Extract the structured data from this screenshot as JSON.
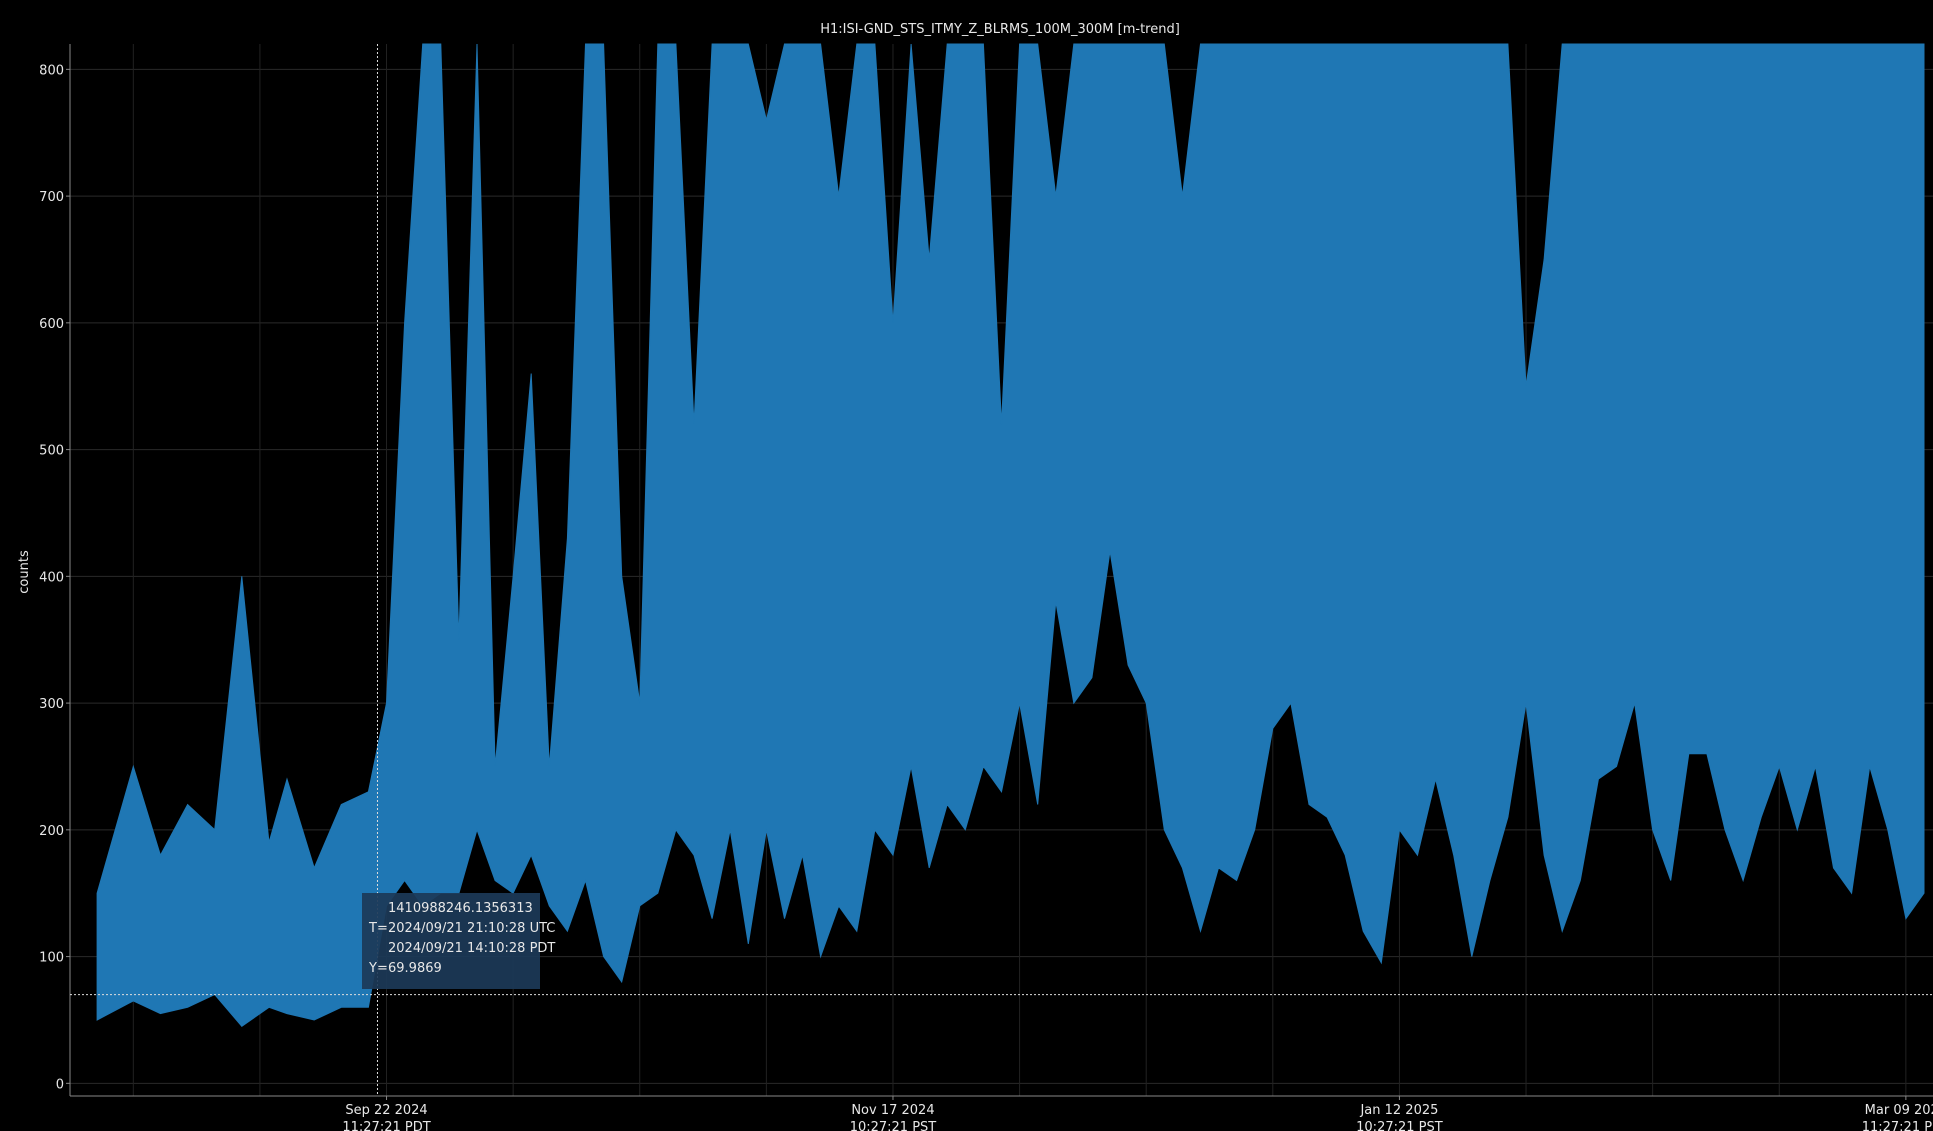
{
  "chart_data": {
    "type": "area",
    "title": "H1:ISI-GND_STS_ITMY_Z_BLRMS_100M_300M [m-trend]",
    "ylabel": "counts",
    "xlabel": "",
    "ylim": [
      -10,
      820
    ],
    "yticks": [
      0,
      100,
      200,
      300,
      400,
      500,
      600,
      700,
      800
    ],
    "xticks": [
      {
        "date": "Sep 22 2024",
        "time": "11:27:21 PDT"
      },
      {
        "date": "Nov 17 2024",
        "time": "10:27:21 PST"
      },
      {
        "date": "Jan 12 2025",
        "time": "10:27:21 PST"
      },
      {
        "date": "Mar 09 2025",
        "time": "11:27:21 PDT"
      }
    ],
    "grid": true,
    "series": [
      {
        "color": "#1f77b4",
        "envelope_x_days_from_sep22": [
          -32,
          -28,
          -25,
          -22,
          -19,
          -16,
          -13,
          -11,
          -8,
          -5,
          -2,
          0,
          2,
          4,
          6,
          8,
          10,
          12,
          14,
          16,
          18,
          20,
          22,
          24,
          26,
          28,
          30,
          32,
          34,
          36,
          38,
          40,
          42,
          44,
          46,
          48,
          50,
          52,
          54,
          56,
          58,
          60,
          62,
          64,
          66,
          68,
          70,
          72,
          74,
          76,
          78,
          80,
          82,
          84,
          86,
          88,
          90,
          92,
          94,
          96,
          98,
          100,
          102,
          104,
          106,
          108,
          110,
          112,
          114,
          116,
          118,
          120,
          122,
          124,
          126,
          128,
          130,
          132,
          134,
          136,
          138,
          140,
          142,
          144,
          146,
          148,
          150,
          152,
          154,
          156,
          158,
          160,
          162,
          164,
          166,
          168,
          170
        ],
        "upper": [
          150,
          250,
          180,
          220,
          200,
          400,
          190,
          240,
          170,
          220,
          230,
          300,
          600,
          820,
          820,
          350,
          820,
          250,
          400,
          560,
          250,
          430,
          820,
          820,
          400,
          300,
          820,
          820,
          520,
          820,
          820,
          820,
          760,
          820,
          820,
          820,
          700,
          820,
          820,
          600,
          820,
          650,
          820,
          820,
          820,
          520,
          820,
          820,
          700,
          820,
          820,
          820,
          820,
          820,
          820,
          700,
          820,
          820,
          820,
          820,
          820,
          820,
          820,
          820,
          820,
          820,
          820,
          820,
          820,
          820,
          820,
          820,
          820,
          820,
          550,
          650,
          820,
          820,
          820,
          820,
          820,
          820,
          820,
          820,
          820,
          820,
          820,
          820,
          820,
          820,
          820,
          820,
          820,
          820,
          820,
          820,
          820
        ],
        "lower": [
          50,
          65,
          55,
          60,
          70,
          45,
          60,
          55,
          50,
          60,
          60,
          140,
          160,
          140,
          150,
          150,
          200,
          160,
          150,
          180,
          140,
          120,
          160,
          100,
          80,
          140,
          150,
          200,
          180,
          130,
          200,
          110,
          200,
          130,
          180,
          100,
          140,
          120,
          200,
          180,
          250,
          170,
          220,
          200,
          250,
          230,
          300,
          220,
          380,
          300,
          320,
          420,
          330,
          300,
          200,
          170,
          120,
          170,
          160,
          200,
          280,
          300,
          220,
          210,
          180,
          120,
          95,
          200,
          180,
          240,
          180,
          100,
          160,
          210,
          300,
          180,
          120,
          160,
          240,
          250,
          300,
          200,
          160,
          260,
          260,
          200,
          160,
          210,
          250,
          200,
          250,
          170,
          150,
          250,
          200,
          130,
          150
        ]
      }
    ],
    "cursor": {
      "gps": "1410988246.1356313",
      "t_prefix": "T=",
      "t_utc": "2024/09/21 21:10:28 UTC",
      "t_local": "2024/09/21 14:10:28 PDT",
      "y_prefix": "Y=",
      "y_value": "69.9869",
      "x_day": -1,
      "y": 69.9869
    }
  }
}
